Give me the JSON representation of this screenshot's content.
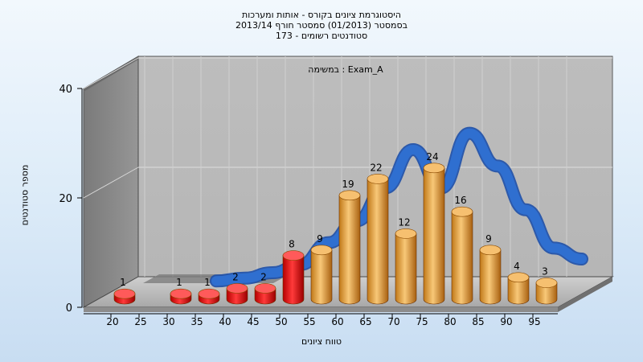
{
  "chart_data": {
    "type": "bar",
    "title_lines": [
      "היסטוגרמת ציונים בקורס - אותות ומערכות",
      "בסמסטר  (01/2013)  סמסטר חורף 2013/14",
      "סטודנטים רשומים - 173"
    ],
    "subtitle": "Exam_A : במשימה",
    "xlabel": "טווח ציונים",
    "ylabel": "מספר סטודנטים",
    "ylim": [
      0,
      40
    ],
    "y_ticks": [
      0,
      20,
      40
    ],
    "x_ticks": [
      "20",
      "25",
      "30",
      "35",
      "40",
      "45",
      "50",
      "55",
      "60",
      "65",
      "70",
      "75",
      "80",
      "85",
      "90",
      "95"
    ],
    "categories": [
      "20",
      "30",
      "35",
      "40",
      "45",
      "50",
      "55",
      "60",
      "65",
      "70",
      "75",
      "80",
      "85",
      "90",
      "95"
    ],
    "values": [
      1,
      1,
      1,
      2,
      2,
      8,
      9,
      19,
      22,
      12,
      24,
      16,
      9,
      4,
      3
    ],
    "bar_colors": [
      "#e01818",
      "#e01818",
      "#e01818",
      "#e01818",
      "#e01818",
      "#e01818",
      "#f0a440",
      "#f0a440",
      "#f0a440",
      "#f0a440",
      "#f0a440",
      "#f0a440",
      "#f0a440",
      "#f0a440",
      "#f0a440"
    ],
    "curve": {
      "x": [
        35,
        40,
        45,
        50,
        55,
        60,
        65,
        70,
        75,
        80,
        85,
        90,
        95,
        100
      ],
      "values": [
        1,
        1.5,
        2.5,
        4,
        8,
        12,
        18,
        25,
        18,
        28,
        22,
        14,
        7,
        5
      ]
    },
    "grid": true,
    "colors": {
      "red_bar": "#e01818",
      "orange_bar": "#f0a440",
      "curve": "#2f6fd0"
    }
  }
}
